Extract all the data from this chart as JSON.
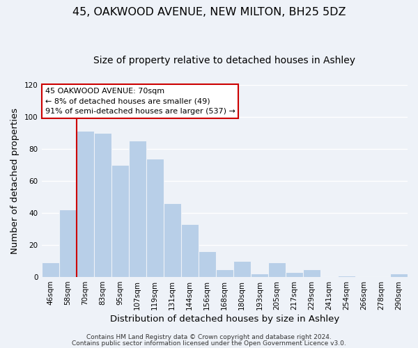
{
  "title": "45, OAKWOOD AVENUE, NEW MILTON, BH25 5DZ",
  "subtitle": "Size of property relative to detached houses in Ashley",
  "xlabel": "Distribution of detached houses by size in Ashley",
  "ylabel": "Number of detached properties",
  "bin_labels": [
    "46sqm",
    "58sqm",
    "70sqm",
    "83sqm",
    "95sqm",
    "107sqm",
    "119sqm",
    "131sqm",
    "144sqm",
    "156sqm",
    "168sqm",
    "180sqm",
    "193sqm",
    "205sqm",
    "217sqm",
    "229sqm",
    "241sqm",
    "254sqm",
    "266sqm",
    "278sqm",
    "290sqm"
  ],
  "bar_heights": [
    9,
    42,
    91,
    90,
    70,
    85,
    74,
    46,
    33,
    16,
    5,
    10,
    2,
    9,
    3,
    5,
    0,
    1,
    0,
    0,
    2
  ],
  "bar_color": "#b8cfe8",
  "vline_x_bar_index": 2,
  "vline_color": "#cc0000",
  "ylim": [
    0,
    120
  ],
  "annotation_title": "45 OAKWOOD AVENUE: 70sqm",
  "annotation_line1": "← 8% of detached houses are smaller (49)",
  "annotation_line2": "91% of semi-detached houses are larger (537) →",
  "annotation_box_facecolor": "#ffffff",
  "annotation_box_edgecolor": "#cc0000",
  "footer1": "Contains HM Land Registry data © Crown copyright and database right 2024.",
  "footer2": "Contains public sector information licensed under the Open Government Licence v3.0.",
  "bg_color": "#eef2f8",
  "grid_color": "#ffffff",
  "title_fontsize": 11.5,
  "subtitle_fontsize": 10,
  "axis_label_fontsize": 9.5,
  "tick_fontsize": 7.5,
  "footer_fontsize": 6.5
}
